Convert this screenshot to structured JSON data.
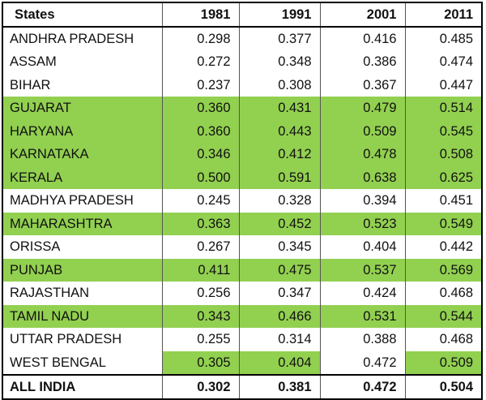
{
  "table": {
    "header": [
      "States",
      "1981",
      "1991",
      "2001",
      "2011"
    ],
    "rows": [
      [
        "ANDHRA PRADESH",
        "0.298",
        "0.377",
        "0.416",
        "0.485"
      ],
      [
        "ASSAM",
        "0.272",
        "0.348",
        "0.386",
        "0.474"
      ],
      [
        "BIHAR",
        "0.237",
        "0.308",
        "0.367",
        "0.447"
      ],
      [
        "GUJARAT",
        "0.360",
        "0.431",
        "0.479",
        "0.514"
      ],
      [
        "HARYANA",
        "0.360",
        "0.443",
        "0.509",
        "0.545"
      ],
      [
        "KARNATAKA",
        "0.346",
        "0.412",
        "0.478",
        "0.508"
      ],
      [
        "KERALA",
        "0.500",
        "0.591",
        "0.638",
        "0.625"
      ],
      [
        "MADHYA PRADESH",
        "0.245",
        "0.328",
        "0.394",
        "0.451"
      ],
      [
        "MAHARASHTRA",
        "0.363",
        "0.452",
        "0.523",
        "0.549"
      ],
      [
        "ORISSA",
        "0.267",
        "0.345",
        "0.404",
        "0.442"
      ],
      [
        "PUNJAB",
        "0.411",
        "0.475",
        "0.537",
        "0.569"
      ],
      [
        "RAJASTHAN",
        "0.256",
        "0.347",
        "0.424",
        "0.468"
      ],
      [
        "TAMIL NADU",
        "0.343",
        "0.466",
        "0.531",
        "0.544"
      ],
      [
        "UTTAR PRADESH",
        "0.255",
        "0.314",
        "0.388",
        "0.468"
      ],
      [
        "WEST BENGAL",
        "0.305",
        "0.404",
        "0.472",
        "0.509"
      ]
    ],
    "footer": [
      "ALL INDIA",
      "0.302",
      "0.381",
      "0.472",
      "0.504"
    ]
  }
}
